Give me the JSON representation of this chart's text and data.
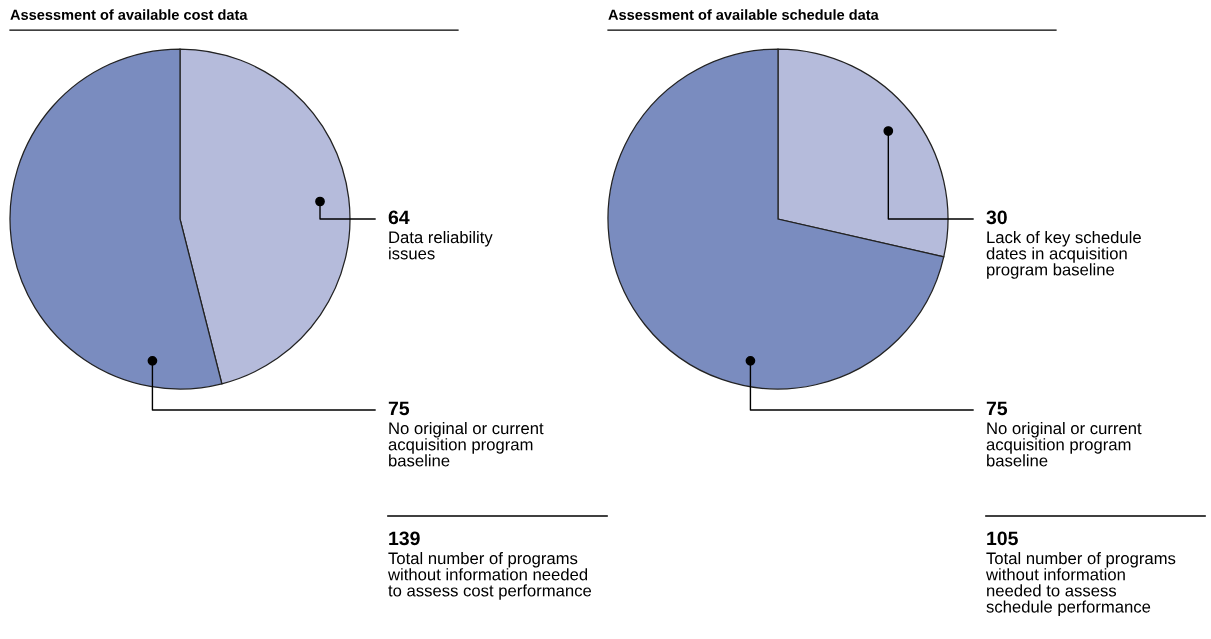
{
  "chart_data": [
    {
      "type": "pie",
      "title": "Assessment of available cost data",
      "categories": [
        "Data reliability\nissues",
        "No original or current\nacquisition program\nbaseline"
      ],
      "values": [
        64,
        75
      ],
      "colors": [
        "#b5bbdb",
        "#7a8cbf"
      ],
      "data_labels": true,
      "legend": false,
      "annotations": [
        "139",
        "Total number of programs\nwithout information needed\nto assess cost performance"
      ]
    },
    {
      "type": "pie",
      "title": "Assessment of available schedule data",
      "categories": [
        "Lack of key schedule\ndates in acquisition\nprogram baseline",
        "No original or current\nacquisition program\nbaseline"
      ],
      "values": [
        30,
        75
      ],
      "colors": [
        "#b5bbdb",
        "#7a8cbf"
      ],
      "data_labels": true,
      "legend": false,
      "annotations": [
        "105",
        "Total number of programs\nwithout information\nneeded to assess\nschedule performance"
      ]
    }
  ]
}
